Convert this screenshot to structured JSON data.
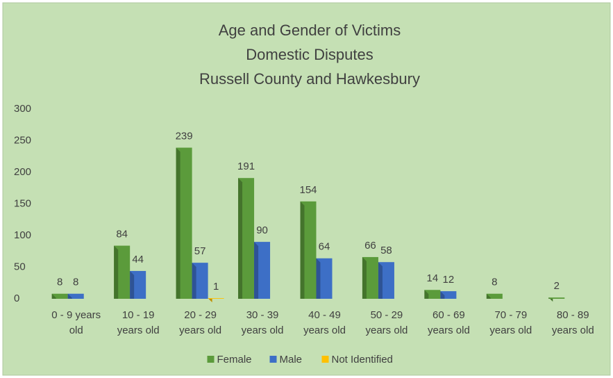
{
  "chart_data": {
    "type": "bar",
    "title": [
      "Age and Gender of Victims",
      "Domestic Disputes",
      "Russell County and Hawkesbury"
    ],
    "categories": [
      "0 - 9 years old",
      "10 - 19 years old",
      "20 - 29 years old",
      "30 - 39 years old",
      "40 - 49 years old",
      "50 - 29 years old",
      "60 - 69 years old",
      "70 - 79 years old",
      "80 - 89 years old"
    ],
    "series": [
      {
        "name": "Female",
        "color": "#5b9b3b",
        "values": [
          8,
          84,
          239,
          191,
          154,
          66,
          14,
          8,
          2
        ]
      },
      {
        "name": "Male",
        "color": "#3d6fc6",
        "values": [
          8,
          44,
          57,
          90,
          64,
          58,
          12,
          null,
          null
        ]
      },
      {
        "name": "Not Identified",
        "color": "#ffc000",
        "values": [
          null,
          null,
          1,
          null,
          null,
          null,
          null,
          null,
          null
        ]
      }
    ],
    "ylim": [
      0,
      300
    ],
    "yticks": [
      0,
      50,
      100,
      150,
      200,
      250,
      300
    ],
    "grid": false,
    "legend": "bottom"
  }
}
